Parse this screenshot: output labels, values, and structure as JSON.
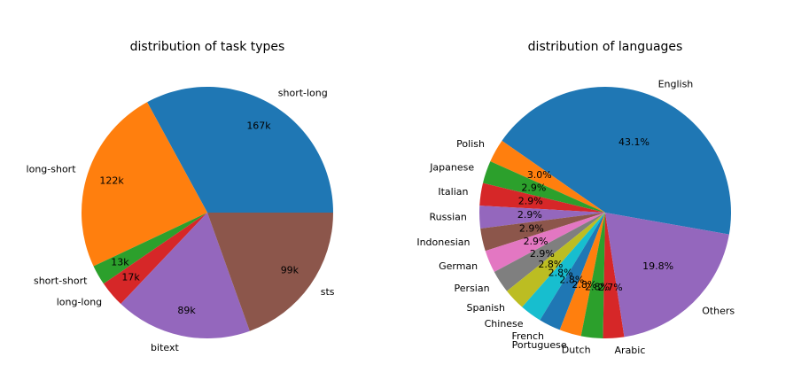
{
  "chart_data": [
    {
      "type": "pie",
      "title": "distribution of task types",
      "labels": [
        "short-long",
        "long-short",
        "short-short",
        "long-long",
        "bitext",
        "sts"
      ],
      "values": [
        167,
        122,
        13,
        17,
        89,
        99
      ],
      "value_labels": [
        "167k",
        "122k",
        "13k",
        "17k",
        "89k",
        "99k"
      ],
      "colors": [
        "#1f77b4",
        "#ff7f0e",
        "#2ca02c",
        "#d62728",
        "#9467bd",
        "#8c564b"
      ],
      "start_angle_deg": 0,
      "direction": "counterclockwise"
    },
    {
      "type": "pie",
      "title": "distribution of languages",
      "labels": [
        "English",
        "Polish",
        "Japanese",
        "Italian",
        "Russian",
        "Indonesian",
        "German",
        "Persian",
        "Spanish",
        "Chinese",
        "French",
        "Portuguese",
        "Dutch",
        "Arabic",
        "Others"
      ],
      "values": [
        43.1,
        3.0,
        2.9,
        2.9,
        2.9,
        2.9,
        2.9,
        2.9,
        2.8,
        2.8,
        2.8,
        2.8,
        2.8,
        2.7,
        19.8
      ],
      "value_labels": [
        "43.1%",
        "3.0%",
        "2.9%",
        "2.9%",
        "2.9%",
        "2.9%",
        "2.9%",
        "2.9%",
        "2.8%",
        "2.8%",
        "2.8%",
        "2.8%",
        "2.8%",
        "2.7%",
        "19.8%"
      ],
      "colors": [
        "#1f77b4",
        "#ff7f0e",
        "#2ca02c",
        "#d62728",
        "#9467bd",
        "#8c564b",
        "#e377c2",
        "#7f7f7f",
        "#bcbd22",
        "#17becf",
        "#1f77b4",
        "#ff7f0e",
        "#2ca02c",
        "#d62728",
        "#9467bd"
      ],
      "start_angle_deg": -10,
      "direction": "counterclockwise"
    }
  ]
}
